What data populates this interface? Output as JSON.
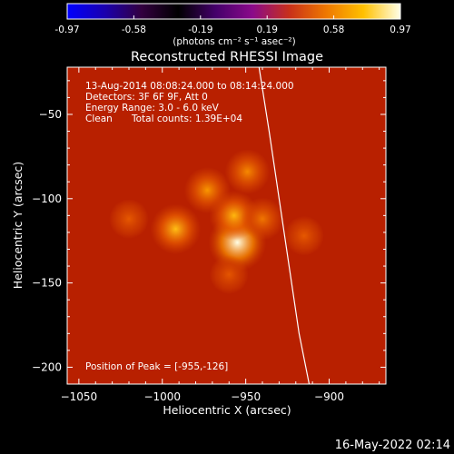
{
  "colors": {
    "background": "#000000",
    "foreground": "#ffffff",
    "limb": "#ffffff"
  },
  "colorbar": {
    "ticks": [
      "-0.97",
      "-0.58",
      "-0.19",
      "0.19",
      "0.58",
      "0.97"
    ],
    "label": "(photons cm⁻² s⁻¹ asec⁻²)",
    "colormap": [
      "#0000ff",
      "#1a00b0",
      "#330040",
      "#000000",
      "#44006a",
      "#8a0a8a",
      "#c8301a",
      "#ee7800",
      "#ffc000",
      "#ffffe8"
    ]
  },
  "annotations": {
    "line1": "13-Aug-2014 08:08:24.000 to 08:14:24.000",
    "line2": "Detectors: 3F 6F 9F, Att 0",
    "line3": "Energy Range: 3.0 - 6.0 keV",
    "line4a": "Clean",
    "line4b": "Total counts: 1.39E+04",
    "peak": "Position of Peak = [-955,-126]"
  },
  "timestamp": "16-May-2022 02:14",
  "chart_data": {
    "type": "heatmap",
    "title": "Reconstructed RHESSI Image",
    "xlabel": "Heliocentric X (arcsec)",
    "ylabel": "Heliocentric Y (arcsec)",
    "xlim": [
      -1057,
      -866
    ],
    "ylim": [
      -210,
      -22
    ],
    "xticks": [
      -1050,
      -1000,
      -950,
      -900
    ],
    "yticks": [
      -50,
      -100,
      -150,
      -200
    ],
    "value_range": [
      -0.97,
      0.97
    ],
    "sources": [
      {
        "x": -992,
        "y": -118,
        "peak": 0.74
      },
      {
        "x": -973,
        "y": -95,
        "peak": 0.62
      },
      {
        "x": -955,
        "y": -126,
        "peak": 0.97
      },
      {
        "x": -957,
        "y": -110,
        "peak": 0.72
      },
      {
        "x": -949,
        "y": -84,
        "peak": 0.58
      },
      {
        "x": -940,
        "y": -112,
        "peak": 0.52
      },
      {
        "x": -915,
        "y": -122,
        "peak": 0.42
      },
      {
        "x": -1020,
        "y": -112,
        "peak": 0.42
      },
      {
        "x": -960,
        "y": -145,
        "peak": 0.4
      }
    ],
    "peak_position": [
      -955,
      -126
    ],
    "limb": [
      [
        -942,
        -22
      ],
      [
        -936,
        -60
      ],
      [
        -930,
        -100
      ],
      [
        -924,
        -140
      ],
      [
        -918,
        -180
      ],
      [
        -912,
        -210
      ]
    ]
  }
}
